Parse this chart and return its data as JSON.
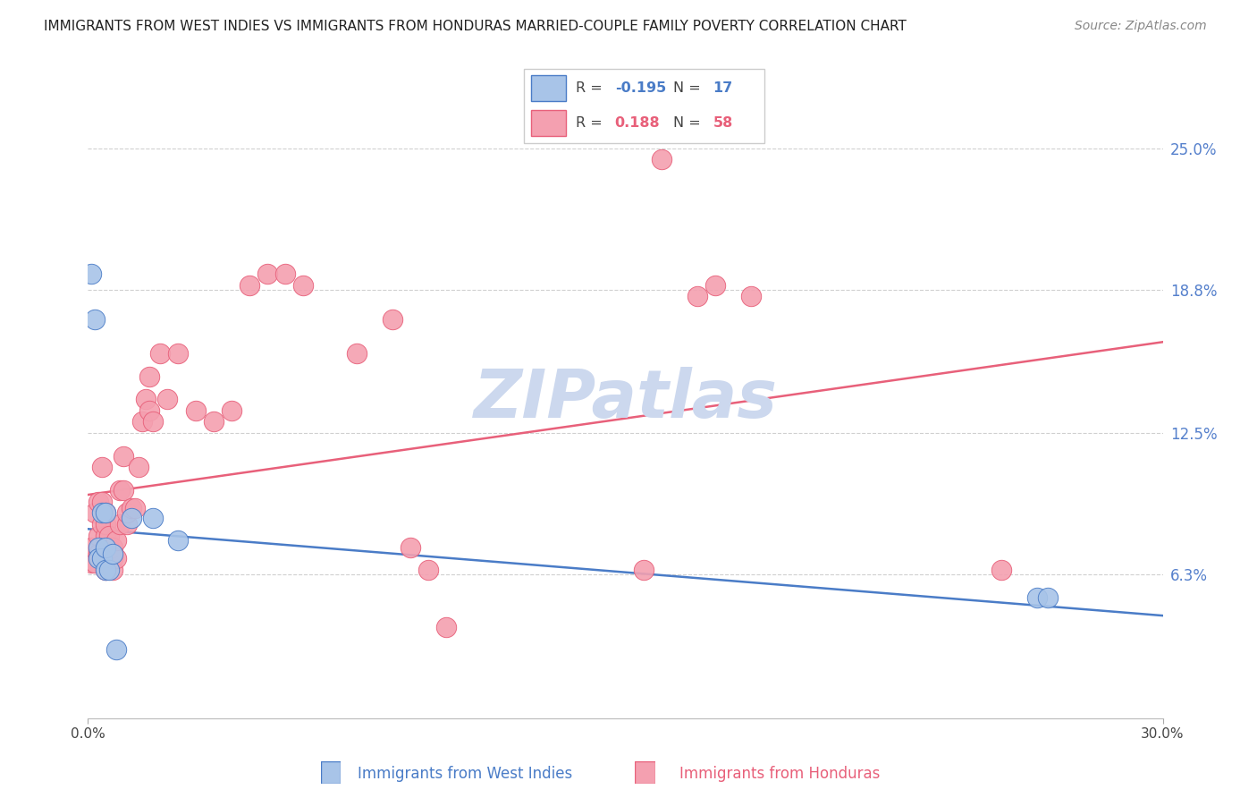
{
  "title": "IMMIGRANTS FROM WEST INDIES VS IMMIGRANTS FROM HONDURAS MARRIED-COUPLE FAMILY POVERTY CORRELATION CHART",
  "source": "Source: ZipAtlas.com",
  "ylabel_right": [
    "25.0%",
    "18.8%",
    "12.5%",
    "6.3%"
  ],
  "ylabel_right_vals": [
    0.25,
    0.188,
    0.125,
    0.063
  ],
  "xmin": 0.0,
  "xmax": 0.3,
  "ymin": 0.0,
  "ymax": 0.28,
  "legend_blue_R": "-0.195",
  "legend_blue_N": "17",
  "legend_pink_R": "0.188",
  "legend_pink_N": "58",
  "blue_color": "#a8c4e8",
  "pink_color": "#f4a0b0",
  "blue_line_color": "#4a7cc7",
  "pink_line_color": "#e8607a",
  "watermark_color": "#ccd8ee",
  "label_blue": "Immigrants from West Indies",
  "label_pink": "Immigrants from Honduras",
  "pink_line_x0": 0.0,
  "pink_line_y0": 0.098,
  "pink_line_x1": 0.3,
  "pink_line_y1": 0.165,
  "blue_line_x0": 0.0,
  "blue_line_y0": 0.083,
  "blue_line_x1": 0.3,
  "blue_line_y1": 0.045,
  "west_indies_x": [
    0.001,
    0.002,
    0.003,
    0.003,
    0.004,
    0.004,
    0.005,
    0.005,
    0.005,
    0.006,
    0.007,
    0.008,
    0.012,
    0.018,
    0.025,
    0.265,
    0.268
  ],
  "west_indies_y": [
    0.195,
    0.175,
    0.075,
    0.07,
    0.07,
    0.09,
    0.065,
    0.075,
    0.09,
    0.065,
    0.072,
    0.03,
    0.088,
    0.088,
    0.078,
    0.053,
    0.053
  ],
  "honduras_x": [
    0.001,
    0.001,
    0.002,
    0.002,
    0.003,
    0.003,
    0.003,
    0.004,
    0.004,
    0.004,
    0.005,
    0.005,
    0.005,
    0.005,
    0.005,
    0.006,
    0.006,
    0.006,
    0.007,
    0.007,
    0.007,
    0.008,
    0.008,
    0.009,
    0.009,
    0.01,
    0.01,
    0.011,
    0.011,
    0.012,
    0.013,
    0.014,
    0.015,
    0.016,
    0.017,
    0.017,
    0.018,
    0.02,
    0.022,
    0.025,
    0.03,
    0.035,
    0.04,
    0.045,
    0.05,
    0.055,
    0.06,
    0.075,
    0.085,
    0.09,
    0.095,
    0.1,
    0.155,
    0.16,
    0.17,
    0.175,
    0.185,
    0.255
  ],
  "honduras_y": [
    0.068,
    0.075,
    0.068,
    0.09,
    0.072,
    0.08,
    0.095,
    0.085,
    0.095,
    0.11,
    0.065,
    0.07,
    0.08,
    0.085,
    0.09,
    0.068,
    0.075,
    0.08,
    0.065,
    0.07,
    0.075,
    0.07,
    0.078,
    0.085,
    0.1,
    0.1,
    0.115,
    0.085,
    0.09,
    0.092,
    0.092,
    0.11,
    0.13,
    0.14,
    0.15,
    0.135,
    0.13,
    0.16,
    0.14,
    0.16,
    0.135,
    0.13,
    0.135,
    0.19,
    0.195,
    0.195,
    0.19,
    0.16,
    0.175,
    0.075,
    0.065,
    0.04,
    0.065,
    0.245,
    0.185,
    0.19,
    0.185,
    0.065
  ]
}
